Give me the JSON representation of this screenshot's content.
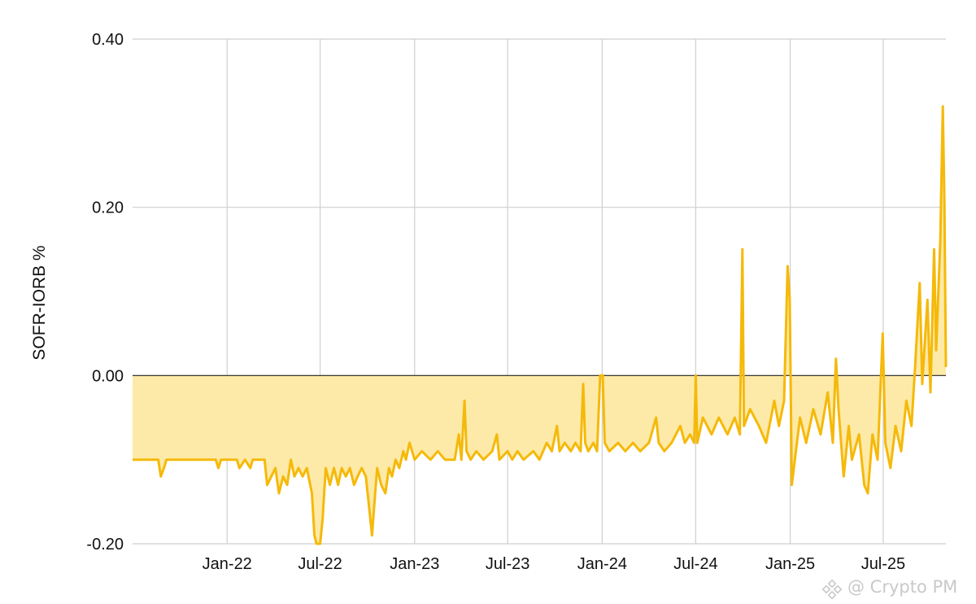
{
  "chart_data": {
    "type": "area",
    "title": "",
    "xlabel": "",
    "ylabel": "SOFR-IORB %",
    "ylim": [
      -0.2,
      0.4
    ],
    "xlim": [
      "2021-07-01",
      "2025-10-31"
    ],
    "y_ticks": [
      {
        "value": 0.4,
        "label": "0.40"
      },
      {
        "value": 0.2,
        "label": "0.20"
      },
      {
        "value": 0.0,
        "label": "0.00"
      },
      {
        "value": -0.2,
        "label": "-0.20"
      }
    ],
    "x_ticks": [
      {
        "date": "2022-01-01",
        "label": "Jan-22"
      },
      {
        "date": "2022-07-01",
        "label": "Jul-22"
      },
      {
        "date": "2023-01-01",
        "label": "Jan-23"
      },
      {
        "date": "2023-07-01",
        "label": "Jul-23"
      },
      {
        "date": "2024-01-01",
        "label": "Jan-24"
      },
      {
        "date": "2024-07-01",
        "label": "Jul-24"
      },
      {
        "date": "2025-01-01",
        "label": "Jan-25"
      },
      {
        "date": "2025-07-01",
        "label": "Jul-25"
      }
    ],
    "grid": true,
    "legend": "none",
    "fill_to_zero": true,
    "series": [
      {
        "line_color": "#f5b90a",
        "fill_color": "#fdeaa8",
        "points": [
          [
            "2021-07-01",
            -0.1
          ],
          [
            "2021-08-20",
            -0.1
          ],
          [
            "2021-08-25",
            -0.12
          ],
          [
            "2021-08-31",
            -0.11
          ],
          [
            "2021-09-05",
            -0.1
          ],
          [
            "2021-12-10",
            -0.1
          ],
          [
            "2021-12-15",
            -0.11
          ],
          [
            "2021-12-20",
            -0.1
          ],
          [
            "2022-01-20",
            -0.1
          ],
          [
            "2022-01-25",
            -0.11
          ],
          [
            "2022-02-05",
            -0.1
          ],
          [
            "2022-02-15",
            -0.11
          ],
          [
            "2022-02-20",
            -0.1
          ],
          [
            "2022-03-15",
            -0.1
          ],
          [
            "2022-03-20",
            -0.13
          ],
          [
            "2022-03-28",
            -0.12
          ],
          [
            "2022-04-05",
            -0.11
          ],
          [
            "2022-04-12",
            -0.14
          ],
          [
            "2022-04-20",
            -0.12
          ],
          [
            "2022-04-28",
            -0.13
          ],
          [
            "2022-05-05",
            -0.1
          ],
          [
            "2022-05-12",
            -0.12
          ],
          [
            "2022-05-20",
            -0.11
          ],
          [
            "2022-05-28",
            -0.12
          ],
          [
            "2022-06-05",
            -0.11
          ],
          [
            "2022-06-15",
            -0.14
          ],
          [
            "2022-06-20",
            -0.19
          ],
          [
            "2022-06-24",
            -0.2
          ],
          [
            "2022-07-01",
            -0.2
          ],
          [
            "2022-07-06",
            -0.17
          ],
          [
            "2022-07-12",
            -0.11
          ],
          [
            "2022-07-20",
            -0.13
          ],
          [
            "2022-07-28",
            -0.11
          ],
          [
            "2022-08-05",
            -0.13
          ],
          [
            "2022-08-12",
            -0.11
          ],
          [
            "2022-08-20",
            -0.12
          ],
          [
            "2022-08-28",
            -0.11
          ],
          [
            "2022-09-05",
            -0.13
          ],
          [
            "2022-09-12",
            -0.12
          ],
          [
            "2022-09-20",
            -0.11
          ],
          [
            "2022-09-28",
            -0.12
          ],
          [
            "2022-10-05",
            -0.16
          ],
          [
            "2022-10-10",
            -0.19
          ],
          [
            "2022-10-15",
            -0.15
          ],
          [
            "2022-10-20",
            -0.11
          ],
          [
            "2022-10-28",
            -0.13
          ],
          [
            "2022-11-05",
            -0.14
          ],
          [
            "2022-11-12",
            -0.11
          ],
          [
            "2022-11-18",
            -0.12
          ],
          [
            "2022-11-25",
            -0.1
          ],
          [
            "2022-12-02",
            -0.11
          ],
          [
            "2022-12-10",
            -0.09
          ],
          [
            "2022-12-15",
            -0.1
          ],
          [
            "2022-12-22",
            -0.08
          ],
          [
            "2023-01-01",
            -0.1
          ],
          [
            "2023-01-15",
            -0.09
          ],
          [
            "2023-02-01",
            -0.1
          ],
          [
            "2023-02-15",
            -0.09
          ],
          [
            "2023-03-01",
            -0.1
          ],
          [
            "2023-03-20",
            -0.1
          ],
          [
            "2023-03-28",
            -0.07
          ],
          [
            "2023-04-02",
            -0.1
          ],
          [
            "2023-04-08",
            -0.03
          ],
          [
            "2023-04-12",
            -0.09
          ],
          [
            "2023-04-20",
            -0.1
          ],
          [
            "2023-05-01",
            -0.09
          ],
          [
            "2023-05-15",
            -0.1
          ],
          [
            "2023-06-01",
            -0.09
          ],
          [
            "2023-06-10",
            -0.07
          ],
          [
            "2023-06-15",
            -0.1
          ],
          [
            "2023-07-01",
            -0.09
          ],
          [
            "2023-07-10",
            -0.1
          ],
          [
            "2023-07-20",
            -0.09
          ],
          [
            "2023-08-01",
            -0.1
          ],
          [
            "2023-08-20",
            -0.09
          ],
          [
            "2023-09-01",
            -0.1
          ],
          [
            "2023-09-15",
            -0.08
          ],
          [
            "2023-09-25",
            -0.09
          ],
          [
            "2023-10-05",
            -0.06
          ],
          [
            "2023-10-10",
            -0.09
          ],
          [
            "2023-10-20",
            -0.08
          ],
          [
            "2023-11-01",
            -0.09
          ],
          [
            "2023-11-10",
            -0.08
          ],
          [
            "2023-11-20",
            -0.09
          ],
          [
            "2023-11-25",
            -0.01
          ],
          [
            "2023-11-29",
            -0.08
          ],
          [
            "2023-12-05",
            -0.09
          ],
          [
            "2023-12-15",
            -0.08
          ],
          [
            "2023-12-22",
            -0.09
          ],
          [
            "2023-12-28",
            0.0
          ],
          [
            "2024-01-02",
            0.0
          ],
          [
            "2024-01-06",
            -0.08
          ],
          [
            "2024-01-15",
            -0.09
          ],
          [
            "2024-02-01",
            -0.08
          ],
          [
            "2024-02-15",
            -0.09
          ],
          [
            "2024-03-01",
            -0.08
          ],
          [
            "2024-03-15",
            -0.09
          ],
          [
            "2024-04-01",
            -0.08
          ],
          [
            "2024-04-15",
            -0.05
          ],
          [
            "2024-04-20",
            -0.08
          ],
          [
            "2024-05-01",
            -0.09
          ],
          [
            "2024-05-15",
            -0.08
          ],
          [
            "2024-06-01",
            -0.06
          ],
          [
            "2024-06-10",
            -0.08
          ],
          [
            "2024-06-20",
            -0.07
          ],
          [
            "2024-06-28",
            -0.08
          ],
          [
            "2024-07-01",
            0.0
          ],
          [
            "2024-07-04",
            -0.08
          ],
          [
            "2024-07-15",
            -0.05
          ],
          [
            "2024-08-01",
            -0.07
          ],
          [
            "2024-08-15",
            -0.05
          ],
          [
            "2024-09-01",
            -0.07
          ],
          [
            "2024-09-15",
            -0.05
          ],
          [
            "2024-09-25",
            -0.07
          ],
          [
            "2024-09-30",
            0.15
          ],
          [
            "2024-10-03",
            -0.06
          ],
          [
            "2024-10-15",
            -0.04
          ],
          [
            "2024-11-01",
            -0.06
          ],
          [
            "2024-11-15",
            -0.08
          ],
          [
            "2024-12-01",
            -0.03
          ],
          [
            "2024-12-10",
            -0.06
          ],
          [
            "2024-12-20",
            -0.03
          ],
          [
            "2024-12-27",
            0.13
          ],
          [
            "2024-12-31",
            0.09
          ],
          [
            "2025-01-04",
            -0.13
          ],
          [
            "2025-01-10",
            -0.1
          ],
          [
            "2025-01-20",
            -0.05
          ],
          [
            "2025-02-01",
            -0.08
          ],
          [
            "2025-02-15",
            -0.04
          ],
          [
            "2025-03-01",
            -0.07
          ],
          [
            "2025-03-15",
            -0.02
          ],
          [
            "2025-03-25",
            -0.08
          ],
          [
            "2025-03-31",
            0.02
          ],
          [
            "2025-04-05",
            -0.04
          ],
          [
            "2025-04-15",
            -0.12
          ],
          [
            "2025-04-25",
            -0.06
          ],
          [
            "2025-05-01",
            -0.1
          ],
          [
            "2025-05-15",
            -0.07
          ],
          [
            "2025-05-25",
            -0.13
          ],
          [
            "2025-06-01",
            -0.14
          ],
          [
            "2025-06-10",
            -0.07
          ],
          [
            "2025-06-20",
            -0.1
          ],
          [
            "2025-06-30",
            0.05
          ],
          [
            "2025-07-05",
            -0.08
          ],
          [
            "2025-07-15",
            -0.11
          ],
          [
            "2025-07-25",
            -0.06
          ],
          [
            "2025-08-05",
            -0.09
          ],
          [
            "2025-08-15",
            -0.03
          ],
          [
            "2025-08-25",
            -0.06
          ],
          [
            "2025-09-01",
            0.01
          ],
          [
            "2025-09-10",
            0.11
          ],
          [
            "2025-09-15",
            -0.01
          ],
          [
            "2025-09-25",
            0.09
          ],
          [
            "2025-10-01",
            -0.02
          ],
          [
            "2025-10-08",
            0.15
          ],
          [
            "2025-10-12",
            0.03
          ],
          [
            "2025-10-20",
            0.16
          ],
          [
            "2025-10-25",
            0.32
          ],
          [
            "2025-10-28",
            0.21
          ],
          [
            "2025-10-31",
            0.01
          ]
        ]
      }
    ]
  },
  "watermark": {
    "text": "@ Crypto PM",
    "icon": "binance-logo-icon"
  }
}
